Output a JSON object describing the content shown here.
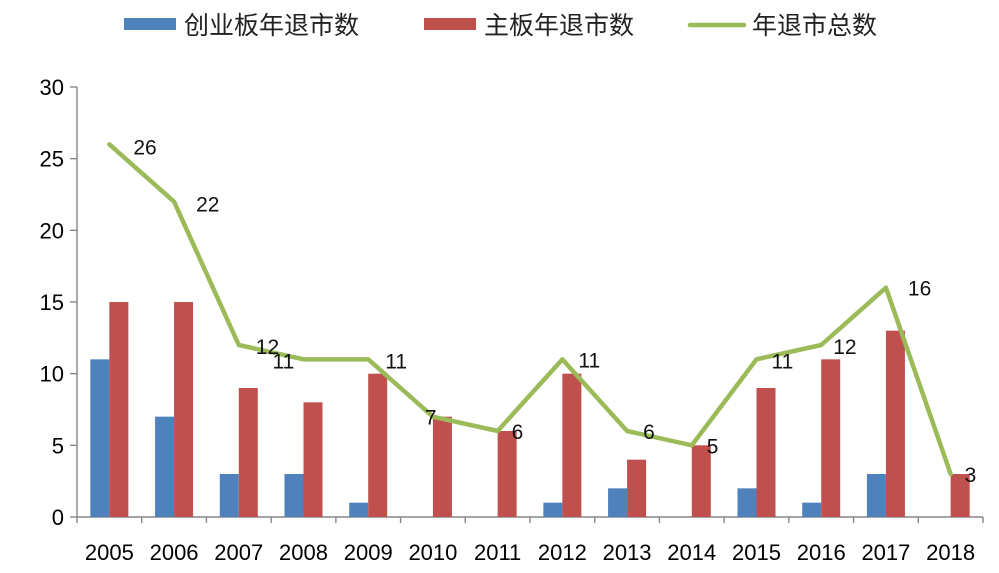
{
  "chart_data": {
    "type": "bar",
    "categories": [
      "2005",
      "2006",
      "2007",
      "2008",
      "2009",
      "2010",
      "2011",
      "2012",
      "2013",
      "2014",
      "2015",
      "2016",
      "2017",
      "2018"
    ],
    "series": [
      {
        "name": "创业板年退市数",
        "type": "bar",
        "color": "#4F81BD",
        "values": [
          11,
          7,
          3,
          3,
          1,
          0,
          0,
          1,
          2,
          0,
          2,
          1,
          3,
          0
        ]
      },
      {
        "name": "主板年退市数",
        "type": "bar",
        "color": "#C0504D",
        "values": [
          15,
          15,
          9,
          8,
          10,
          7,
          6,
          10,
          4,
          5,
          9,
          11,
          13,
          3
        ]
      },
      {
        "name": "年退市总数",
        "type": "line",
        "color": "#9BBB59",
        "values": [
          26,
          22,
          12,
          11,
          11,
          7,
          6,
          11,
          6,
          5,
          11,
          12,
          16,
          3
        ],
        "data_labels": [
          "26",
          "22",
          "12",
          "11",
          "11",
          "7",
          "6",
          "11",
          "6",
          "5",
          "11",
          "12",
          "16",
          "3"
        ]
      }
    ],
    "y_ticks": [
      "0",
      "5",
      "10",
      "15",
      "20",
      "25",
      "30"
    ],
    "ylim": [
      0,
      30
    ],
    "grid": false,
    "legend_position": "top"
  }
}
